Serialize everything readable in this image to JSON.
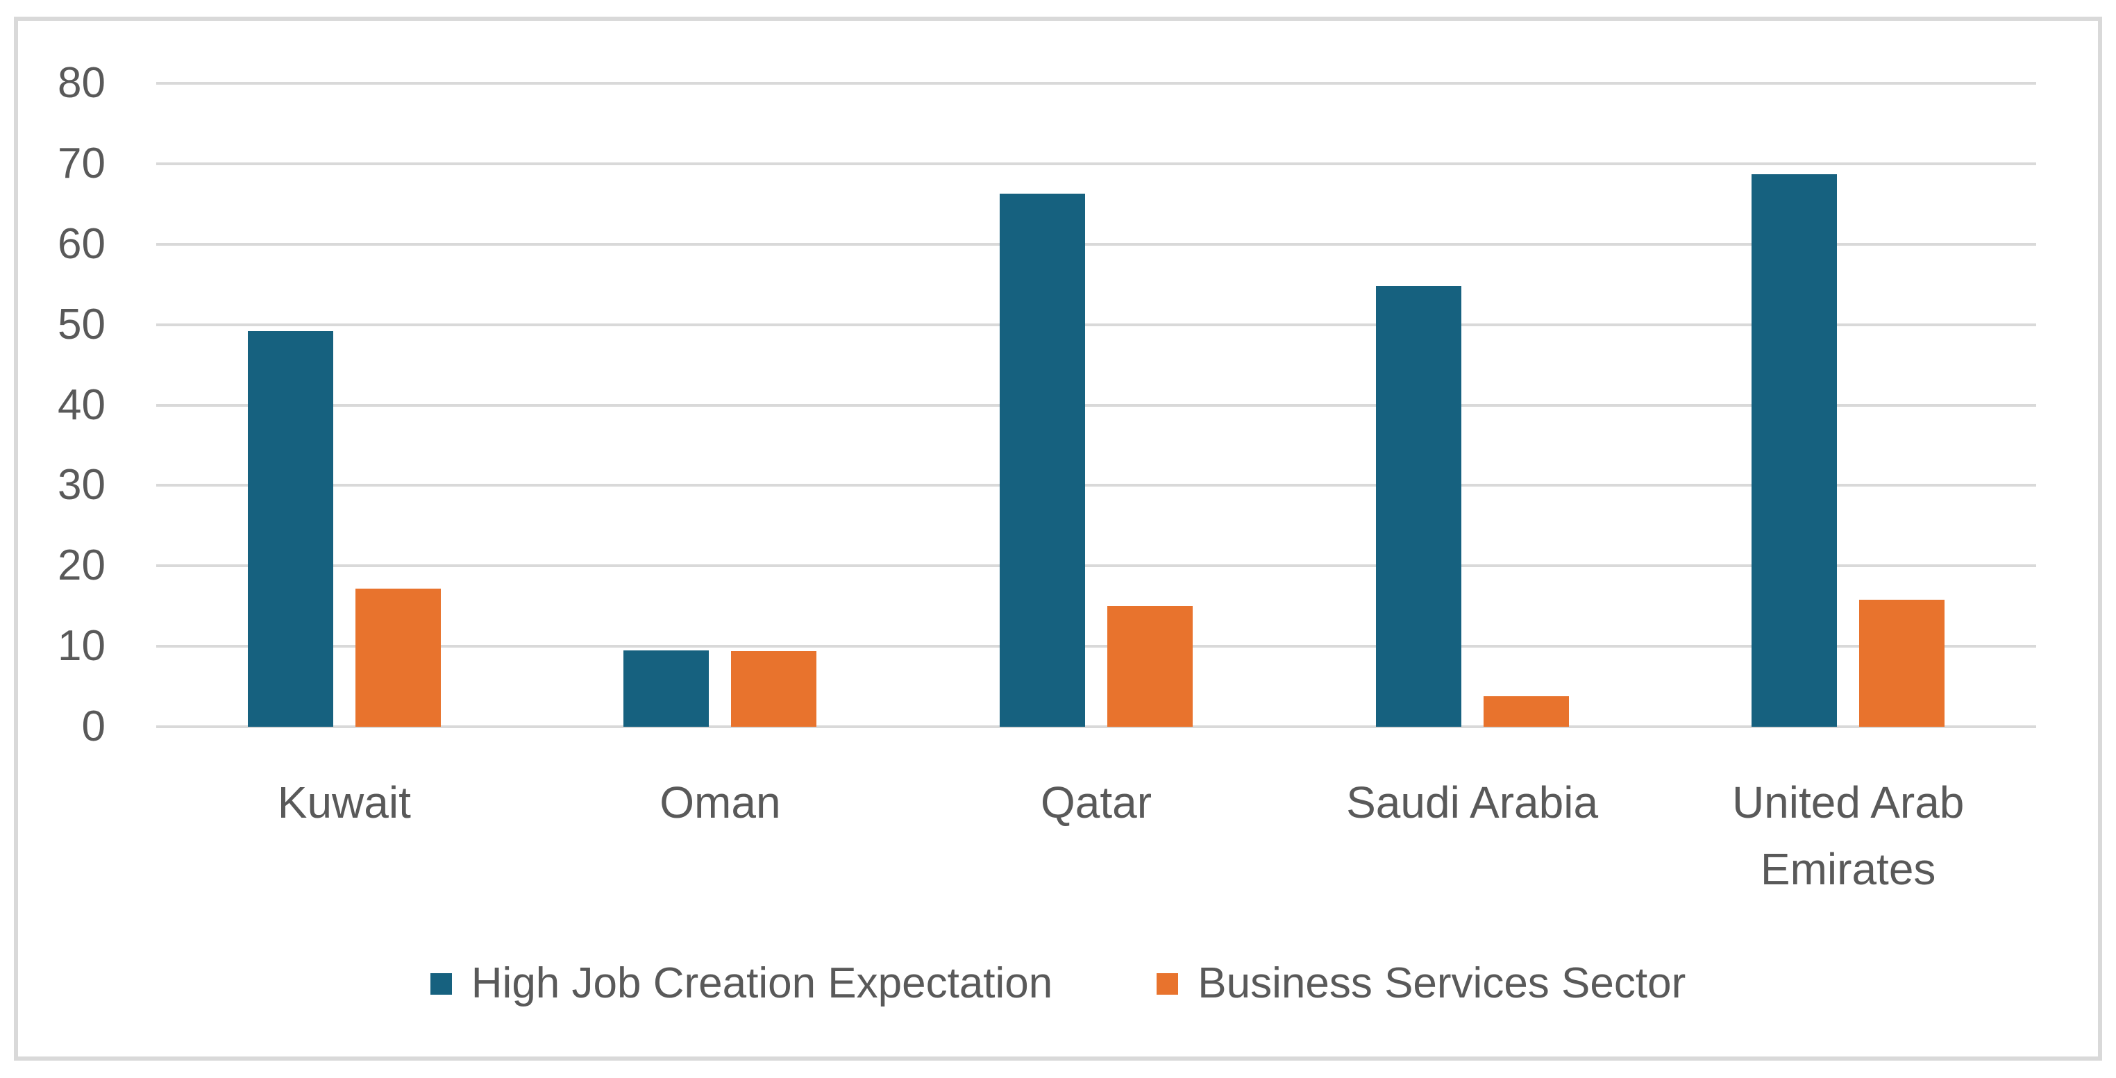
{
  "colors": {
    "series_blue": "#16617F",
    "series_orange": "#E8732D",
    "gridline": "#D9D9D9",
    "frame_border": "#D9D9D9",
    "text": "#595959",
    "background": "#FFFFFF"
  },
  "chart_data": {
    "type": "bar",
    "title": "",
    "xlabel": "",
    "ylabel": "",
    "categories": [
      "Kuwait",
      "Oman",
      "Qatar",
      "Saudi Arabia",
      "United Arab Emirates"
    ],
    "series": [
      {
        "name": "High Job Creation Expectation",
        "color": "#16617F",
        "values": [
          49.2,
          9.5,
          66.3,
          54.8,
          68.7
        ]
      },
      {
        "name": "Business Services Sector",
        "color": "#E8732D",
        "values": [
          17.2,
          9.4,
          15.0,
          3.8,
          15.8
        ]
      }
    ],
    "ylim": [
      0,
      80
    ],
    "ytick_step": 10,
    "ytick_labels": [
      "0",
      "10",
      "20",
      "30",
      "40",
      "50",
      "60",
      "70",
      "80"
    ],
    "grid": true,
    "legend_position": "bottom"
  }
}
